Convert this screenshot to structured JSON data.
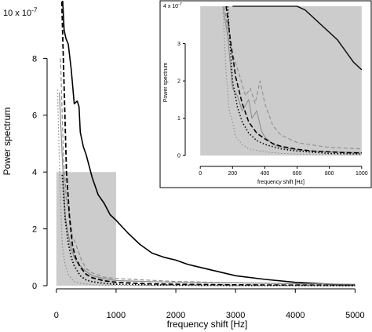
{
  "chart_data": [
    {
      "type": "line",
      "title": "",
      "xlabel": "frequency shift [Hz]",
      "ylabel": "Power spectrum",
      "y_multiplier_label": "10 x 10",
      "y_multiplier_exponent": "-7",
      "xlim": [
        -50,
        5100
      ],
      "ylim": [
        0,
        10
      ],
      "x_ticks": [
        0,
        1000,
        2000,
        3000,
        4000,
        5000
      ],
      "y_ticks": [
        0,
        2,
        4,
        6,
        8
      ],
      "shaded_region": {
        "x": [
          0,
          1000
        ],
        "y": [
          0,
          4
        ],
        "color": "#cccccc"
      },
      "series": [
        {
          "style": "solid-black",
          "x": [
            100,
            130,
            160,
            200,
            250,
            300,
            350,
            380,
            400,
            450,
            500,
            600,
            700,
            800,
            900,
            1000,
            1200,
            1400,
            1600,
            1800,
            2000,
            2200,
            2500,
            2800,
            3000,
            3500,
            4000,
            4500,
            5000
          ],
          "y": [
            10.3,
            9.0,
            8.7,
            8.5,
            7.6,
            6.4,
            6.5,
            6.3,
            5.4,
            4.9,
            4.6,
            3.8,
            3.2,
            2.9,
            2.5,
            2.3,
            1.85,
            1.45,
            1.15,
            1.0,
            0.9,
            0.75,
            0.6,
            0.45,
            0.35,
            0.22,
            0.12,
            0.06,
            0.02
          ]
        },
        {
          "style": "solid-gray",
          "x": [
            50,
            100,
            150,
            200,
            250,
            300,
            350,
            400,
            500,
            600,
            800,
            1000,
            1500,
            2000,
            3000,
            4000,
            5000
          ],
          "y": [
            6.8,
            4.5,
            2.4,
            1.8,
            1.3,
            1.0,
            0.8,
            0.7,
            0.5,
            0.35,
            0.25,
            0.18,
            0.15,
            0.12,
            0.1,
            0.07,
            0.05
          ]
        },
        {
          "style": "dashed-gray",
          "x": [
            70,
            120,
            170,
            220,
            270,
            320,
            370,
            420,
            500,
            600,
            800,
            1000,
            1500,
            2000,
            3000,
            4000,
            5000
          ],
          "y": [
            8.0,
            4.5,
            3.0,
            2.5,
            1.7,
            1.5,
            1.2,
            0.9,
            0.6,
            0.45,
            0.3,
            0.25,
            0.2,
            0.15,
            0.1,
            0.07,
            0.05
          ]
        },
        {
          "style": "dashed-black",
          "x": [
            90,
            130,
            170,
            220,
            270,
            320,
            400,
            500,
            600,
            800,
            1000,
            1500,
            2000,
            3000,
            4000,
            5000
          ],
          "y": [
            10.0,
            7.0,
            4.0,
            2.4,
            1.4,
            1.0,
            0.65,
            0.4,
            0.28,
            0.17,
            0.12,
            0.07,
            0.05,
            0.03,
            0.02,
            0.01
          ]
        },
        {
          "style": "dotted-black",
          "x": [
            100,
            150,
            200,
            250,
            300,
            400,
            500,
            600,
            800,
            1000,
            1500,
            2000,
            3000,
            4000,
            5000
          ],
          "y": [
            3.9,
            2.3,
            1.5,
            1.0,
            0.7,
            0.35,
            0.2,
            0.14,
            0.08,
            0.05,
            0.03,
            0.02,
            0.01,
            0.01,
            0.0
          ]
        },
        {
          "style": "dotted-gray",
          "x": [
            20,
            60,
            100,
            150,
            200,
            250,
            300,
            400,
            600,
            800,
            1000,
            1500,
            2000,
            3000,
            5000
          ],
          "y": [
            6.9,
            3.5,
            1.4,
            0.7,
            0.4,
            0.25,
            0.15,
            0.08,
            0.04,
            0.02,
            0.02,
            0.01,
            0.01,
            0.0,
            0.0
          ]
        }
      ]
    },
    {
      "type": "line",
      "title": "",
      "xlabel": "frequency shift [Hz]",
      "ylabel": "Power spectrum",
      "y_multiplier_label": "4 x 10",
      "y_multiplier_exponent": "-7",
      "xlim": [
        -30,
        1030
      ],
      "ylim": [
        -0.1,
        4.0
      ],
      "x_ticks": [
        0,
        200,
        400,
        600,
        800,
        1000
      ],
      "y_ticks": [
        0,
        1,
        2,
        3
      ],
      "shaded_region": {
        "x": [
          0,
          1000
        ],
        "y": [
          0,
          4
        ],
        "color": "#cccccc"
      },
      "series": [
        {
          "style": "solid-black",
          "x": [
            200,
            250,
            300,
            350,
            400,
            450,
            500,
            550,
            600,
            650,
            700,
            750,
            800,
            850,
            900,
            950,
            1000
          ],
          "y": [
            4.0,
            4.0,
            4.0,
            4.0,
            4.0,
            4.0,
            4.0,
            4.0,
            4.0,
            3.9,
            3.7,
            3.5,
            3.3,
            3.1,
            2.8,
            2.5,
            2.3
          ]
        },
        {
          "style": "solid-gray",
          "x": [
            140,
            170,
            200,
            230,
            260,
            300,
            320,
            350,
            380,
            400,
            450,
            500,
            600,
            700,
            800,
            900,
            1000
          ],
          "y": [
            4.0,
            3.2,
            1.8,
            1.6,
            1.2,
            1.5,
            1.0,
            1.2,
            0.65,
            0.5,
            0.3,
            0.22,
            0.15,
            0.12,
            0.1,
            0.09,
            0.08
          ]
        },
        {
          "style": "dashed-gray",
          "x": [
            150,
            180,
            210,
            240,
            280,
            310,
            340,
            370,
            400,
            450,
            500,
            600,
            700,
            800,
            900,
            1000
          ],
          "y": [
            4.0,
            3.0,
            2.6,
            2.2,
            1.6,
            1.8,
            1.4,
            2.0,
            1.4,
            0.8,
            0.55,
            0.35,
            0.28,
            0.22,
            0.2,
            0.18
          ]
        },
        {
          "style": "dashed-black",
          "x": [
            160,
            190,
            220,
            260,
            300,
            350,
            400,
            450,
            500,
            600,
            700,
            800,
            900,
            1000
          ],
          "y": [
            4.0,
            3.0,
            2.1,
            1.4,
            0.9,
            0.6,
            0.45,
            0.32,
            0.25,
            0.17,
            0.12,
            0.1,
            0.08,
            0.07
          ]
        },
        {
          "style": "dotted-black",
          "x": [
            170,
            200,
            230,
            260,
            300,
            350,
            400,
            500,
            600,
            800,
            1000
          ],
          "y": [
            4.0,
            2.0,
            1.3,
            0.9,
            0.6,
            0.4,
            0.3,
            0.18,
            0.12,
            0.06,
            0.04
          ]
        },
        {
          "style": "dotted-gray",
          "x": [
            140,
            160,
            180,
            200,
            220,
            260,
            300,
            400,
            500,
            600,
            800,
            1000
          ],
          "y": [
            4.0,
            2.2,
            1.2,
            0.9,
            0.5,
            0.3,
            0.18,
            0.1,
            0.06,
            0.04,
            0.03,
            0.02
          ]
        }
      ]
    }
  ]
}
